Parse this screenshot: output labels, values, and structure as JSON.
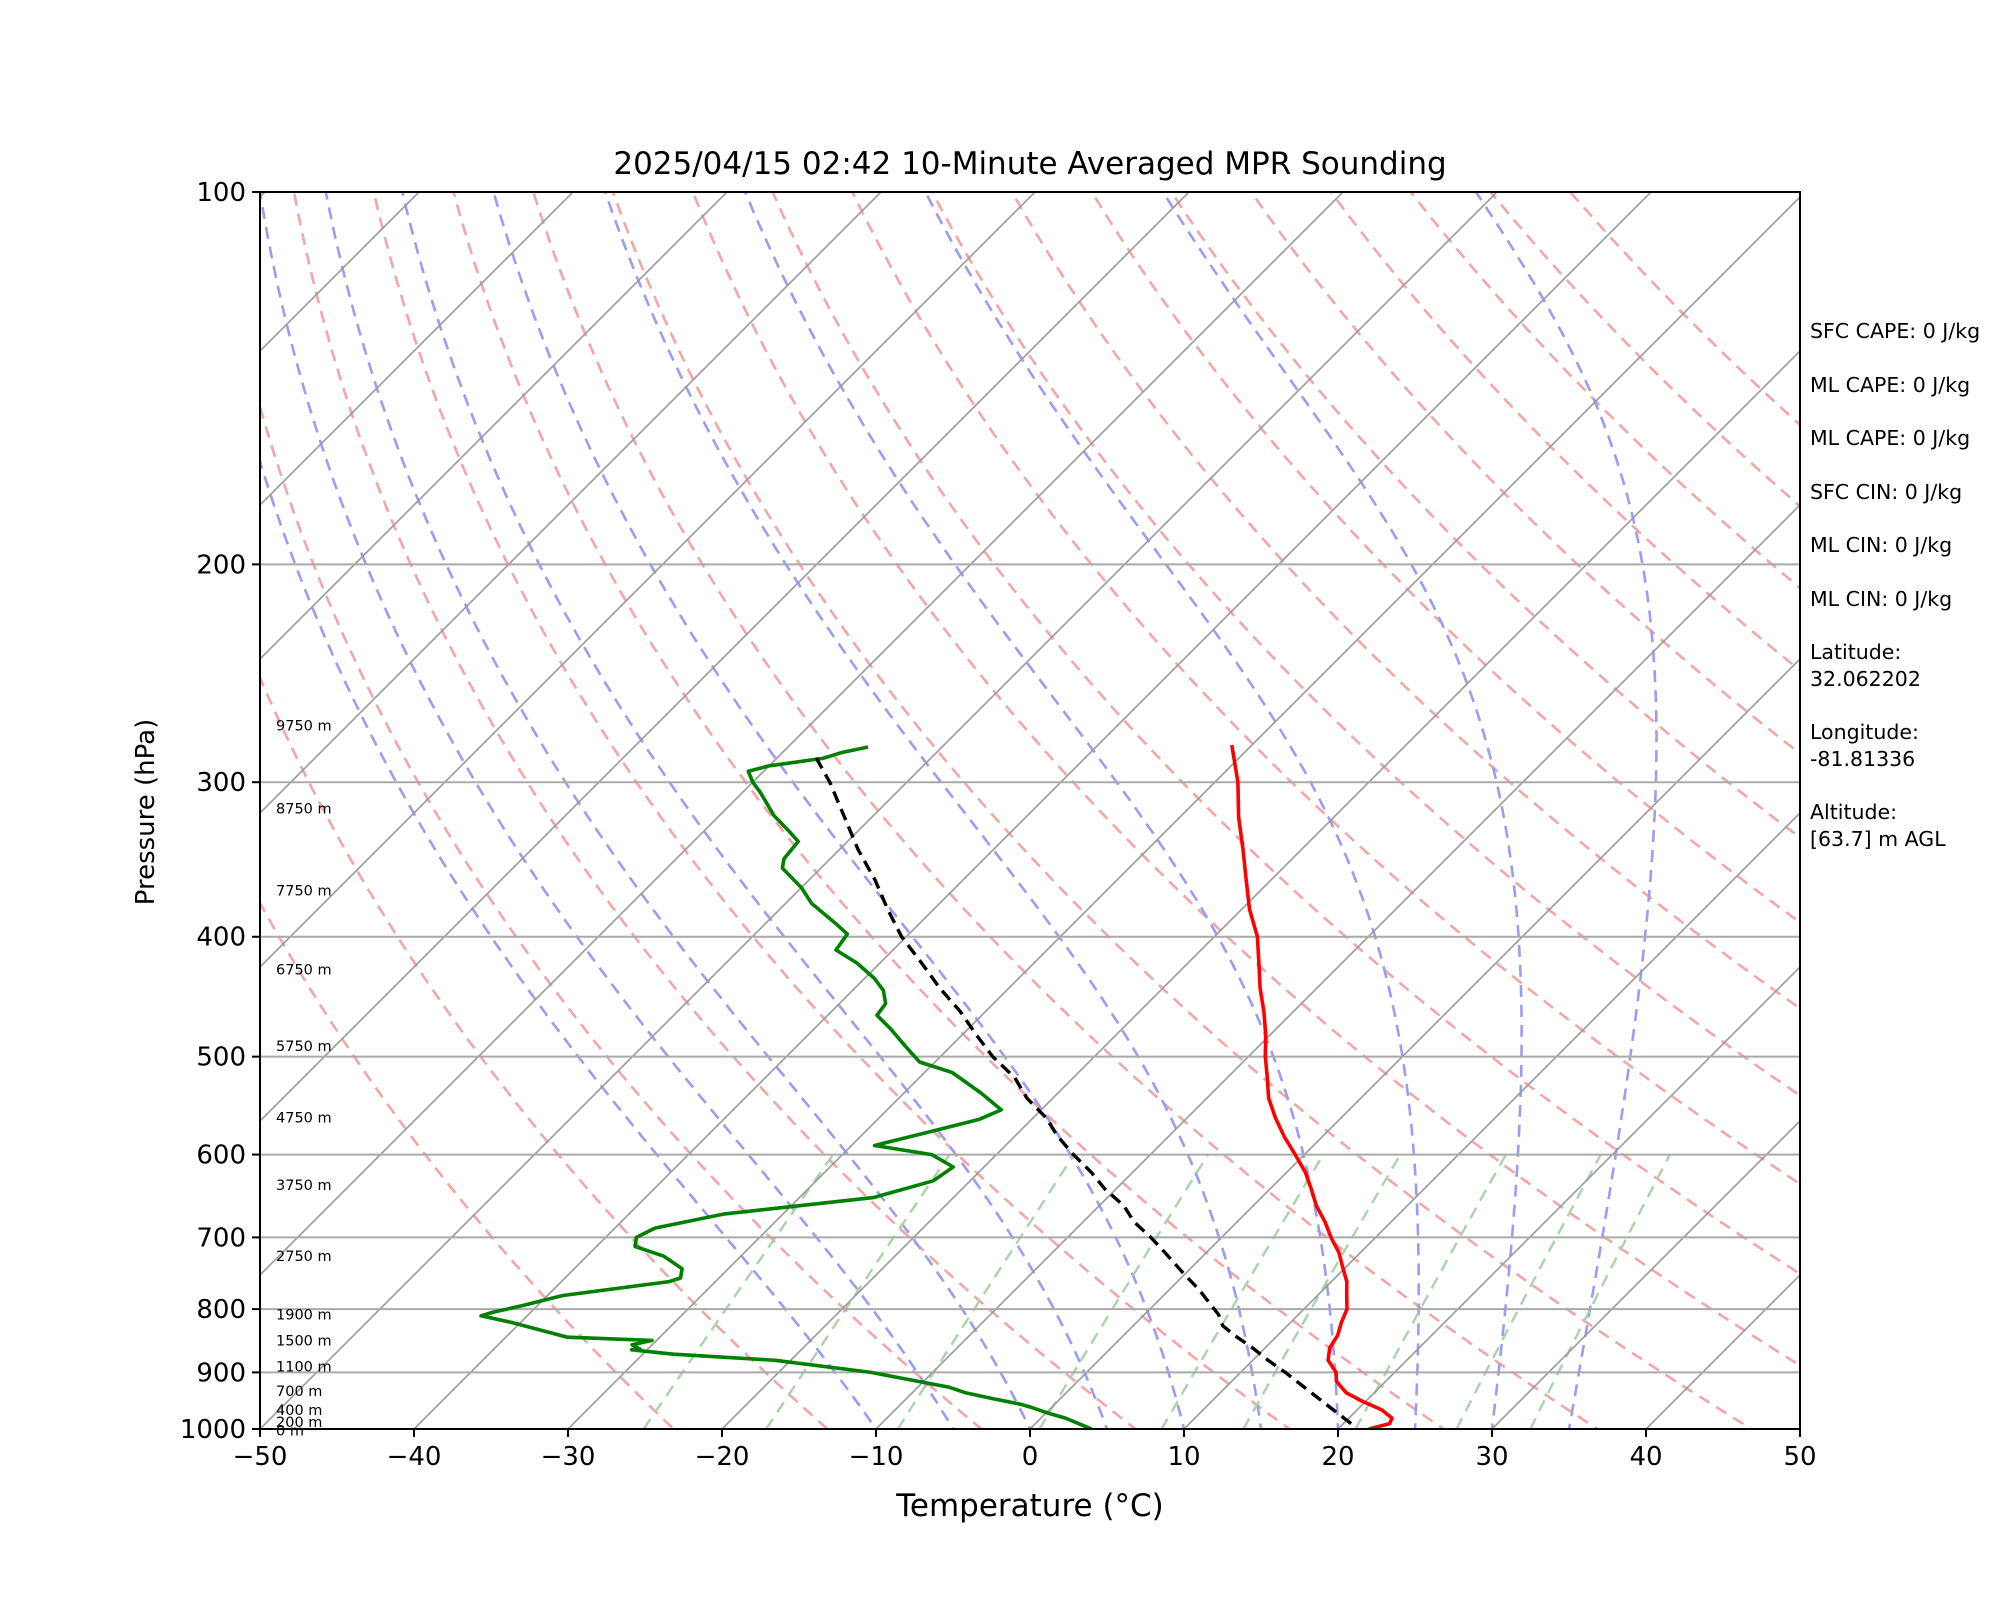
{
  "chart_data": {
    "type": "skew-t",
    "title": "2025/04/15 02:42 10-Minute Averaged MPR Sounding",
    "xlabel": "Temperature (°C)",
    "ylabel": "Pressure (hPa)",
    "xlim": [
      -50,
      50
    ],
    "ylim": [
      1000,
      100
    ],
    "y_scale": "log",
    "skew": "isotherms tilted ~45°",
    "x_ticks": [
      "−50",
      "−40",
      "−30",
      "−20",
      "−10",
      "0",
      "10",
      "20",
      "30",
      "40",
      "50"
    ],
    "y_ticks": [
      "100",
      "200",
      "300",
      "400",
      "500",
      "600",
      "700",
      "800",
      "900",
      "1000"
    ],
    "x_tick_values": [
      -50,
      -40,
      -30,
      -20,
      -10,
      0,
      10,
      20,
      30,
      40,
      50
    ],
    "y_tick_values": [
      100,
      200,
      300,
      400,
      500,
      600,
      700,
      800,
      900,
      1000
    ],
    "height_labels": [
      {
        "text": "9750 m",
        "p": 270
      },
      {
        "text": "8750 m",
        "p": 315
      },
      {
        "text": "7750 m",
        "p": 367
      },
      {
        "text": "6750 m",
        "p": 425
      },
      {
        "text": "5750 m",
        "p": 490
      },
      {
        "text": "4750 m",
        "p": 560
      },
      {
        "text": "3750 m",
        "p": 635
      },
      {
        "text": "2750 m",
        "p": 725
      },
      {
        "text": "1900 m",
        "p": 808
      },
      {
        "text": "1500 m",
        "p": 848
      },
      {
        "text": "1100 m",
        "p": 890
      },
      {
        "text": "700 m",
        "p": 932
      },
      {
        "text": "400 m",
        "p": 965
      },
      {
        "text": "200 m",
        "p": 987
      },
      {
        "text": "0 m",
        "p": 1003
      }
    ],
    "series": [
      {
        "name": "Temperature",
        "color": "#ff0000",
        "points": [
          [
            1000,
            22
          ],
          [
            990,
            23
          ],
          [
            980,
            22.8
          ],
          [
            965,
            21.6
          ],
          [
            950,
            19.8
          ],
          [
            935,
            18.2
          ],
          [
            915,
            16.8
          ],
          [
            900,
            16.2
          ],
          [
            880,
            14.9
          ],
          [
            860,
            14.2
          ],
          [
            840,
            13.9
          ],
          [
            820,
            13.3
          ],
          [
            800,
            12.8
          ],
          [
            780,
            11.9
          ],
          [
            760,
            11.0
          ],
          [
            740,
            9.8
          ],
          [
            720,
            8.6
          ],
          [
            700,
            7.1
          ],
          [
            680,
            5.7
          ],
          [
            660,
            4.1
          ],
          [
            640,
            2.7
          ],
          [
            620,
            1.2
          ],
          [
            600,
            -0.6
          ],
          [
            580,
            -2.5
          ],
          [
            560,
            -4.3
          ],
          [
            540,
            -6.0
          ],
          [
            520,
            -7.4
          ],
          [
            500,
            -8.9
          ],
          [
            480,
            -10.3
          ],
          [
            460,
            -11.9
          ],
          [
            440,
            -13.7
          ],
          [
            420,
            -15.4
          ],
          [
            400,
            -17.2
          ],
          [
            380,
            -19.5
          ],
          [
            360,
            -21.6
          ],
          [
            340,
            -23.8
          ],
          [
            320,
            -26.2
          ],
          [
            300,
            -28.5
          ],
          [
            280,
            -31.3
          ]
        ]
      },
      {
        "name": "Dewpoint",
        "color": "#008000",
        "points": [
          [
            1000,
            4
          ],
          [
            990,
            2.8
          ],
          [
            980,
            1.6
          ],
          [
            970,
            0
          ],
          [
            960,
            -1.4
          ],
          [
            955,
            -2.2
          ],
          [
            945,
            -4.4
          ],
          [
            935,
            -6.5
          ],
          [
            925,
            -8.0
          ],
          [
            900,
            -14.0
          ],
          [
            880,
            -21.0
          ],
          [
            870,
            -28.0
          ],
          [
            863,
            -31.0
          ],
          [
            862,
            -30.5
          ],
          [
            855,
            -31.3
          ],
          [
            848,
            -30.3
          ],
          [
            843,
            -36.0
          ],
          [
            820,
            -40.6
          ],
          [
            810,
            -43.0
          ],
          [
            805,
            -42.5
          ],
          [
            795,
            -41.0
          ],
          [
            780,
            -39.0
          ],
          [
            760,
            -33.0
          ],
          [
            755,
            -32.5
          ],
          [
            742,
            -33.0
          ],
          [
            725,
            -35.0
          ],
          [
            712,
            -37.5
          ],
          [
            700,
            -38.0
          ],
          [
            688,
            -37.4
          ],
          [
            670,
            -33.8
          ],
          [
            650,
            -25.2
          ],
          [
            630,
            -22.4
          ],
          [
            614,
            -22.0
          ],
          [
            600,
            -24.2
          ],
          [
            590,
            -28.5
          ],
          [
            575,
            -25.8
          ],
          [
            562,
            -23.4
          ],
          [
            552,
            -22.6
          ],
          [
            535,
            -25.0
          ],
          [
            515,
            -28.2
          ],
          [
            505,
            -31.0
          ],
          [
            490,
            -33.0
          ],
          [
            475,
            -35.0
          ],
          [
            463,
            -36.8
          ],
          [
            453,
            -37.0
          ],
          [
            442,
            -38.0
          ],
          [
            432,
            -39.4
          ],
          [
            420,
            -41.5
          ],
          [
            410,
            -43.7
          ],
          [
            398,
            -44.0
          ],
          [
            390,
            -45.5
          ],
          [
            376,
            -48.3
          ],
          [
            365,
            -50.0
          ],
          [
            352,
            -52.5
          ],
          [
            346,
            -53.0
          ],
          [
            335,
            -53.2
          ],
          [
            328,
            -54.6
          ],
          [
            319,
            -56.5
          ],
          [
            306,
            -58.8
          ],
          [
            300,
            -60.0
          ],
          [
            294,
            -61.0
          ],
          [
            291,
            -60.0
          ],
          [
            287,
            -57.0
          ],
          [
            284,
            -56.2
          ],
          [
            281,
            -54.8
          ]
        ]
      },
      {
        "name": "Parcel",
        "color": "#000000",
        "style": "dashed",
        "points": [
          [
            990,
            20.5
          ],
          [
            950,
            17.2
          ],
          [
            900,
            12.9
          ],
          [
            880,
            11.0
          ],
          [
            860,
            9.2
          ],
          [
            840,
            7.2
          ],
          [
            825,
            5.8
          ],
          [
            808,
            4.8
          ],
          [
            790,
            3.4
          ],
          [
            770,
            1.8
          ],
          [
            750,
            0.0
          ],
          [
            720,
            -2.7
          ],
          [
            700,
            -4.6
          ],
          [
            680,
            -6.7
          ],
          [
            660,
            -8.4
          ],
          [
            640,
            -10.7
          ],
          [
            620,
            -12.7
          ],
          [
            600,
            -15.0
          ],
          [
            580,
            -17.2
          ],
          [
            560,
            -19.2
          ],
          [
            540,
            -21.7
          ],
          [
            520,
            -23.8
          ],
          [
            500,
            -26.6
          ],
          [
            480,
            -29.1
          ],
          [
            460,
            -31.6
          ],
          [
            440,
            -34.5
          ],
          [
            420,
            -37.3
          ],
          [
            400,
            -40.3
          ],
          [
            380,
            -43.0
          ],
          [
            360,
            -45.7
          ],
          [
            340,
            -48.8
          ],
          [
            320,
            -51.8
          ],
          [
            300,
            -55.0
          ],
          [
            286,
            -57.6
          ]
        ]
      }
    ],
    "background_lines": {
      "isotherms": [
        -160,
        -150,
        -140,
        -130,
        -120,
        -110,
        -100,
        -90,
        -80,
        -70,
        -60,
        -50,
        -40,
        -30,
        -20,
        -10,
        0,
        10,
        20,
        30,
        40,
        50
      ],
      "dry_adiabats_K": [
        250,
        260,
        270,
        280,
        290,
        300,
        310,
        320,
        330,
        340,
        350,
        360,
        370,
        380,
        390,
        400,
        410,
        420,
        430,
        440
      ],
      "moist_adiabats_C": [
        -10,
        -5,
        0,
        5,
        10,
        15,
        20,
        25,
        30,
        35
      ],
      "mixing_ratios_gkg": [
        0.5,
        1,
        2,
        4,
        7,
        10,
        16,
        24,
        32
      ],
      "isotherm_color": "#999999",
      "dry_adiabat_color": "#f4a6a6",
      "moist_adiabat_color": "#9c9cf2",
      "mixing_ratio_color": "#a9d4a9"
    }
  },
  "sidebar": {
    "stats": [
      "SFC CAPE: 0 J/kg",
      "ML CAPE: 0 J/kg",
      "ML CAPE: 0 J/kg",
      "SFC CIN: 0 J/kg",
      "ML CIN: 0 J/kg",
      "ML CIN: 0 J/kg"
    ],
    "latitude_label": "Latitude:",
    "latitude_value": "32.062202",
    "longitude_label": "Longitude:",
    "longitude_value": "-81.81336",
    "altitude_label": "Altitude:",
    "altitude_value": "[63.7] m AGL"
  }
}
